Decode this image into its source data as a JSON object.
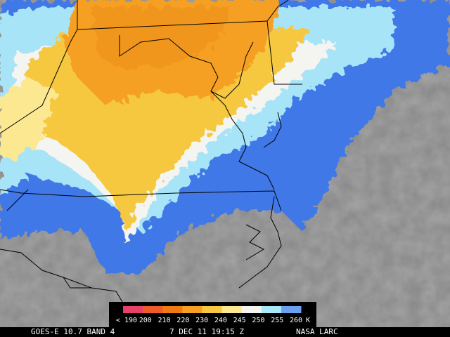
{
  "colorbar": {
    "ticks": [
      {
        "value": 190,
        "label": "< 190"
      },
      200,
      210,
      220,
      230,
      240,
      245,
      250,
      255,
      260
    ],
    "unit": "K",
    "colors": [
      "#e8406a",
      "#f05a2a",
      "#f07a10",
      "#f5a020",
      "#f5c840",
      "#fbe890",
      "#f4f4f0",
      "#a8e8f8",
      "#6aa0f0"
    ]
  },
  "footer": {
    "satellite": "GOES-E 10.7 BAND 4",
    "timestamp": "7 DEC 11 19:15 Z",
    "credit": "NASA LARC"
  }
}
